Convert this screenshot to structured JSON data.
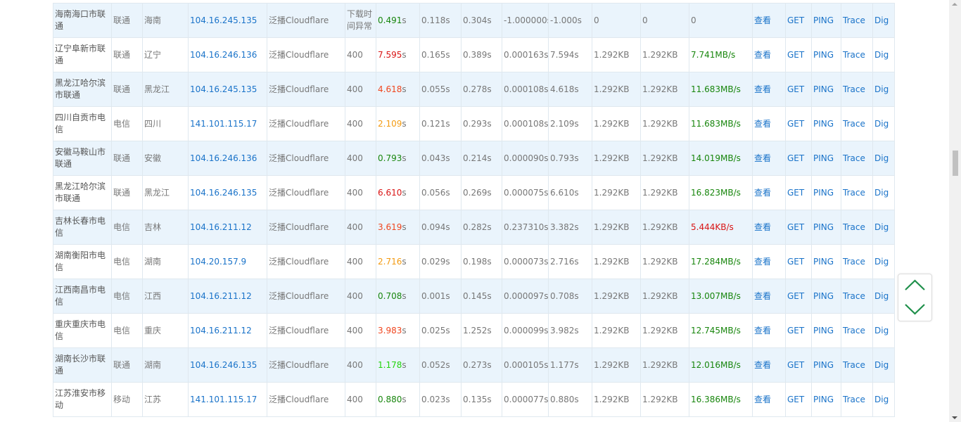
{
  "theme": {
    "link_color": "#1a73c9",
    "row_alt_bg": "#eaf4fc",
    "nav_arrow_color": "#1e8f4a",
    "time_colors": {
      "green": "#18860d",
      "bright_green": "#22d40c",
      "orange": "#f39b12",
      "red_orange": "#f0461f",
      "red": "#d91414"
    }
  },
  "rows": [
    {
      "location": "海南海口市联通",
      "isp": "联通",
      "province": "海南",
      "ip": "104.16.245.135",
      "node": "泛播Cloudflare",
      "status": "下载时间异常",
      "total": "0.491",
      "total_unit": "s",
      "total_color": "green",
      "resolve": "0.118s",
      "connect": "0.304s",
      "download_time": "-1.000000s",
      "first_byte": "-1.000s",
      "header_size": "0",
      "body_size": "0",
      "speed": "0",
      "speed_color": "plain",
      "view": "查看",
      "get": "GET",
      "ping": "PING",
      "trace": "Trace",
      "dig": "Dig"
    },
    {
      "location": "辽宁阜新市联通",
      "isp": "联通",
      "province": "辽宁",
      "ip": "104.16.246.136",
      "node": "泛播Cloudflare",
      "status": "400",
      "total": "7.595",
      "total_unit": "s",
      "total_color": "red",
      "resolve": "0.165s",
      "connect": "0.389s",
      "download_time": "0.000163s",
      "first_byte": "7.594s",
      "header_size": "1.292KB",
      "body_size": "1.292KB",
      "speed": "7.741MB/s",
      "speed_color": "green",
      "view": "查看",
      "get": "GET",
      "ping": "PING",
      "trace": "Trace",
      "dig": "Dig"
    },
    {
      "location": "黑龙江哈尔滨市联通",
      "isp": "联通",
      "province": "黑龙江",
      "ip": "104.16.245.135",
      "node": "泛播Cloudflare",
      "status": "400",
      "total": "4.618",
      "total_unit": "s",
      "total_color": "red_orange",
      "resolve": "0.055s",
      "connect": "0.278s",
      "download_time": "0.000108s",
      "first_byte": "4.618s",
      "header_size": "1.292KB",
      "body_size": "1.292KB",
      "speed": "11.683MB/s",
      "speed_color": "green",
      "view": "查看",
      "get": "GET",
      "ping": "PING",
      "trace": "Trace",
      "dig": "Dig"
    },
    {
      "location": "四川自贡市电信",
      "isp": "电信",
      "province": "四川",
      "ip": "141.101.115.17",
      "node": "泛播Cloudflare",
      "status": "400",
      "total": "2.109",
      "total_unit": "s",
      "total_color": "orange",
      "resolve": "0.121s",
      "connect": "0.293s",
      "download_time": "0.000108s",
      "first_byte": "2.109s",
      "header_size": "1.292KB",
      "body_size": "1.292KB",
      "speed": "11.683MB/s",
      "speed_color": "green",
      "view": "查看",
      "get": "GET",
      "ping": "PING",
      "trace": "Trace",
      "dig": "Dig"
    },
    {
      "location": "安徽马鞍山市联通",
      "isp": "联通",
      "province": "安徽",
      "ip": "104.16.246.136",
      "node": "泛播Cloudflare",
      "status": "400",
      "total": "0.793",
      "total_unit": "s",
      "total_color": "green",
      "resolve": "0.043s",
      "connect": "0.214s",
      "download_time": "0.000090s",
      "first_byte": "0.793s",
      "header_size": "1.292KB",
      "body_size": "1.292KB",
      "speed": "14.019MB/s",
      "speed_color": "green",
      "view": "查看",
      "get": "GET",
      "ping": "PING",
      "trace": "Trace",
      "dig": "Dig"
    },
    {
      "location": "黑龙江哈尔滨市联通",
      "isp": "联通",
      "province": "黑龙江",
      "ip": "104.16.246.135",
      "node": "泛播Cloudflare",
      "status": "400",
      "total": "6.610",
      "total_unit": "s",
      "total_color": "red",
      "resolve": "0.056s",
      "connect": "0.269s",
      "download_time": "0.000075s",
      "first_byte": "6.610s",
      "header_size": "1.292KB",
      "body_size": "1.292KB",
      "speed": "16.823MB/s",
      "speed_color": "green",
      "view": "查看",
      "get": "GET",
      "ping": "PING",
      "trace": "Trace",
      "dig": "Dig"
    },
    {
      "location": "吉林长春市电信",
      "isp": "电信",
      "province": "吉林",
      "ip": "104.16.211.12",
      "node": "泛播Cloudflare",
      "status": "400",
      "total": "3.619",
      "total_unit": "s",
      "total_color": "red_orange",
      "resolve": "0.094s",
      "connect": "0.282s",
      "download_time": "0.237310s",
      "first_byte": "3.382s",
      "header_size": "1.292KB",
      "body_size": "1.292KB",
      "speed": "5.444KB/s",
      "speed_color": "red",
      "view": "查看",
      "get": "GET",
      "ping": "PING",
      "trace": "Trace",
      "dig": "Dig"
    },
    {
      "location": "湖南衡阳市电信",
      "isp": "电信",
      "province": "湖南",
      "ip": "104.20.157.9",
      "node": "泛播Cloudflare",
      "status": "400",
      "total": "2.716",
      "total_unit": "s",
      "total_color": "orange",
      "resolve": "0.029s",
      "connect": "0.198s",
      "download_time": "0.000073s",
      "first_byte": "2.716s",
      "header_size": "1.292KB",
      "body_size": "1.292KB",
      "speed": "17.284MB/s",
      "speed_color": "green",
      "view": "查看",
      "get": "GET",
      "ping": "PING",
      "trace": "Trace",
      "dig": "Dig"
    },
    {
      "location": "江西南昌市电信",
      "isp": "电信",
      "province": "江西",
      "ip": "104.16.211.12",
      "node": "泛播Cloudflare",
      "status": "400",
      "total": "0.708",
      "total_unit": "s",
      "total_color": "green",
      "resolve": "0.001s",
      "connect": "0.145s",
      "download_time": "0.000097s",
      "first_byte": "0.708s",
      "header_size": "1.292KB",
      "body_size": "1.292KB",
      "speed": "13.007MB/s",
      "speed_color": "green",
      "view": "查看",
      "get": "GET",
      "ping": "PING",
      "trace": "Trace",
      "dig": "Dig"
    },
    {
      "location": "重庆重庆市电信",
      "isp": "电信",
      "province": "重庆",
      "ip": "104.16.211.12",
      "node": "泛播Cloudflare",
      "status": "400",
      "total": "3.983",
      "total_unit": "s",
      "total_color": "red_orange",
      "resolve": "0.025s",
      "connect": "1.252s",
      "download_time": "0.000099s",
      "first_byte": "3.982s",
      "header_size": "1.292KB",
      "body_size": "1.292KB",
      "speed": "12.745MB/s",
      "speed_color": "green",
      "view": "查看",
      "get": "GET",
      "ping": "PING",
      "trace": "Trace",
      "dig": "Dig"
    },
    {
      "location": "湖南长沙市联通",
      "isp": "联通",
      "province": "湖南",
      "ip": "104.16.246.135",
      "node": "泛播Cloudflare",
      "status": "400",
      "total": "1.178",
      "total_unit": "s",
      "total_color": "bright_green",
      "resolve": "0.052s",
      "connect": "0.273s",
      "download_time": "0.000105s",
      "first_byte": "1.177s",
      "header_size": "1.292KB",
      "body_size": "1.292KB",
      "speed": "12.016MB/s",
      "speed_color": "green",
      "view": "查看",
      "get": "GET",
      "ping": "PING",
      "trace": "Trace",
      "dig": "Dig"
    },
    {
      "location": "江苏淮安市移动",
      "isp": "移动",
      "province": "江苏",
      "ip": "141.101.115.17",
      "node": "泛播Cloudflare",
      "status": "400",
      "total": "0.880",
      "total_unit": "s",
      "total_color": "green",
      "resolve": "0.023s",
      "connect": "0.135s",
      "download_time": "0.000077s",
      "first_byte": "0.880s",
      "header_size": "1.292KB",
      "body_size": "1.292KB",
      "speed": "16.386MB/s",
      "speed_color": "green",
      "view": "查看",
      "get": "GET",
      "ping": "PING",
      "trace": "Trace",
      "dig": "Dig"
    }
  ],
  "nav": {
    "up_icon": "chevron-up-icon",
    "down_icon": "chevron-down-icon"
  }
}
